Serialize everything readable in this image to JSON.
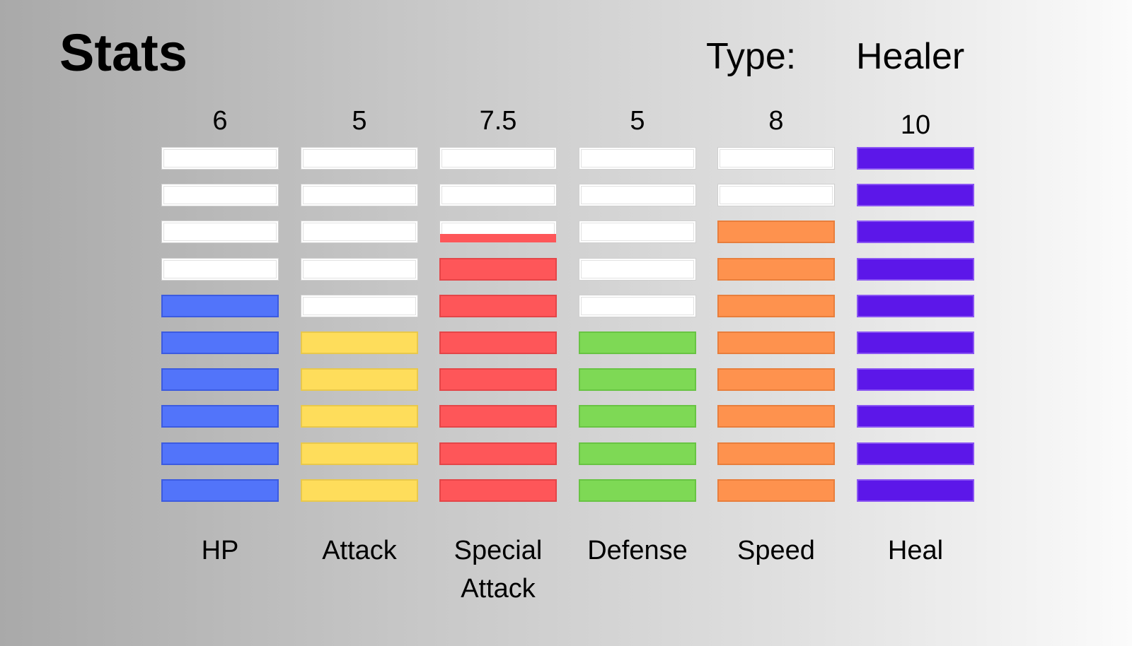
{
  "header": {
    "title": "Stats",
    "type_label": "Type:",
    "type_value": "Healer"
  },
  "scale": {
    "segments": 10
  },
  "stats": [
    {
      "name": "HP",
      "value_label": "6",
      "value": 6,
      "color": "#5274fa",
      "border": "#3c5be0"
    },
    {
      "name": "Attack",
      "value_label": "5",
      "value": 5,
      "color": "#fedd5b",
      "border": "#e8c84c"
    },
    {
      "name": "Special Attack",
      "value_label": "7.5",
      "value": 7.5,
      "color": "#fe5659",
      "border": "#e44548"
    },
    {
      "name": "Defense",
      "value_label": "5",
      "value": 5,
      "color": "#7ed955",
      "border": "#68c443"
    },
    {
      "name": "Speed",
      "value_label": "8",
      "value": 8,
      "color": "#fe924e",
      "border": "#e87e3c"
    },
    {
      "name": "Heal",
      "value_label": "10",
      "value": 10,
      "color": "#5c17e9",
      "border": "#8a55f3"
    }
  ]
}
